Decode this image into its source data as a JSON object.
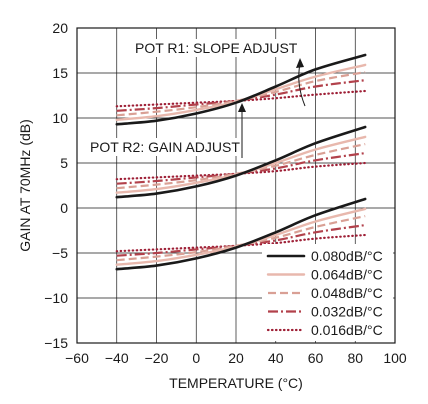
{
  "chart_data": {
    "type": "line",
    "xlabel": "TEMPERATURE (°C)",
    "ylabel": "GAIN AT 70MHz (dB)",
    "xlim": [
      -60,
      100
    ],
    "ylim": [
      -15,
      20
    ],
    "xticks": [
      -60,
      -40,
      -20,
      0,
      20,
      40,
      60,
      80,
      100
    ],
    "yticks": [
      -15,
      -10,
      -5,
      0,
      5,
      10,
      15,
      20
    ],
    "grid": true,
    "legend_position": "bottom-right",
    "annotations": [
      "POT R1: SLOPE ADJUST",
      "POT R2: GAIN ADJUST"
    ],
    "series_styles": [
      {
        "name": "0.080dB/°C",
        "color": "#1a1a1a",
        "style": "solid"
      },
      {
        "name": "0.064dB/°C",
        "color": "#e8b8ad",
        "style": "solid"
      },
      {
        "name": "0.048dB/°C",
        "color": "#d9a095",
        "style": "dashed"
      },
      {
        "name": "0.032dB/°C",
        "color": "#b2414b",
        "style": "dash-dot"
      },
      {
        "name": "0.016dB/°C",
        "color": "#9e1f36",
        "style": "dotted"
      }
    ],
    "x": [
      -40,
      -20,
      0,
      20,
      40,
      60,
      85
    ],
    "groups": [
      {
        "label": "top",
        "series": [
          {
            "name": "0.080dB/°C",
            "values": [
              9.3,
              9.7,
              10.5,
              11.7,
              13.5,
              15.4,
              17.0
            ]
          },
          {
            "name": "0.064dB/°C",
            "values": [
              9.8,
              10.2,
              10.9,
              11.8,
              13.2,
              14.6,
              15.9
            ]
          },
          {
            "name": "0.048dB/°C",
            "values": [
              10.3,
              10.7,
              11.2,
              11.9,
              12.9,
              14.1,
              15.1
            ]
          },
          {
            "name": "0.032dB/°C",
            "values": [
              10.8,
              11.1,
              11.5,
              11.9,
              12.6,
              13.5,
              14.2
            ]
          },
          {
            "name": "0.016dB/°C",
            "values": [
              11.3,
              11.5,
              11.7,
              11.9,
              12.2,
              12.6,
              13.0
            ]
          }
        ]
      },
      {
        "label": "middle",
        "series": [
          {
            "name": "0.080dB/°C",
            "values": [
              1.2,
              1.6,
              2.4,
              3.6,
              5.3,
              7.2,
              9.0
            ]
          },
          {
            "name": "0.064dB/°C",
            "values": [
              1.7,
              2.1,
              2.8,
              3.7,
              5.0,
              6.5,
              7.9
            ]
          },
          {
            "name": "0.048dB/°C",
            "values": [
              2.2,
              2.6,
              3.1,
              3.8,
              4.7,
              5.9,
              7.1
            ]
          },
          {
            "name": "0.032dB/°C",
            "values": [
              2.7,
              3.0,
              3.4,
              3.8,
              4.4,
              5.3,
              6.1
            ]
          },
          {
            "name": "0.016dB/°C",
            "values": [
              3.2,
              3.4,
              3.6,
              3.8,
              4.1,
              4.6,
              5.0
            ]
          }
        ]
      },
      {
        "label": "bottom",
        "series": [
          {
            "name": "0.080dB/°C",
            "values": [
              -6.8,
              -6.4,
              -5.6,
              -4.4,
              -2.7,
              -0.8,
              1.0
            ]
          },
          {
            "name": "0.064dB/°C",
            "values": [
              -6.3,
              -5.9,
              -5.2,
              -4.3,
              -3.0,
              -1.5,
              -0.1
            ]
          },
          {
            "name": "0.048dB/°C",
            "values": [
              -5.8,
              -5.4,
              -4.9,
              -4.2,
              -3.3,
              -2.1,
              -0.9
            ]
          },
          {
            "name": "0.032dB/°C",
            "values": [
              -5.3,
              -5.0,
              -4.6,
              -4.2,
              -3.6,
              -2.7,
              -1.9
            ]
          },
          {
            "name": "0.016dB/°C",
            "values": [
              -4.8,
              -4.6,
              -4.4,
              -4.2,
              -3.9,
              -3.4,
              -3.0
            ]
          }
        ]
      }
    ]
  }
}
